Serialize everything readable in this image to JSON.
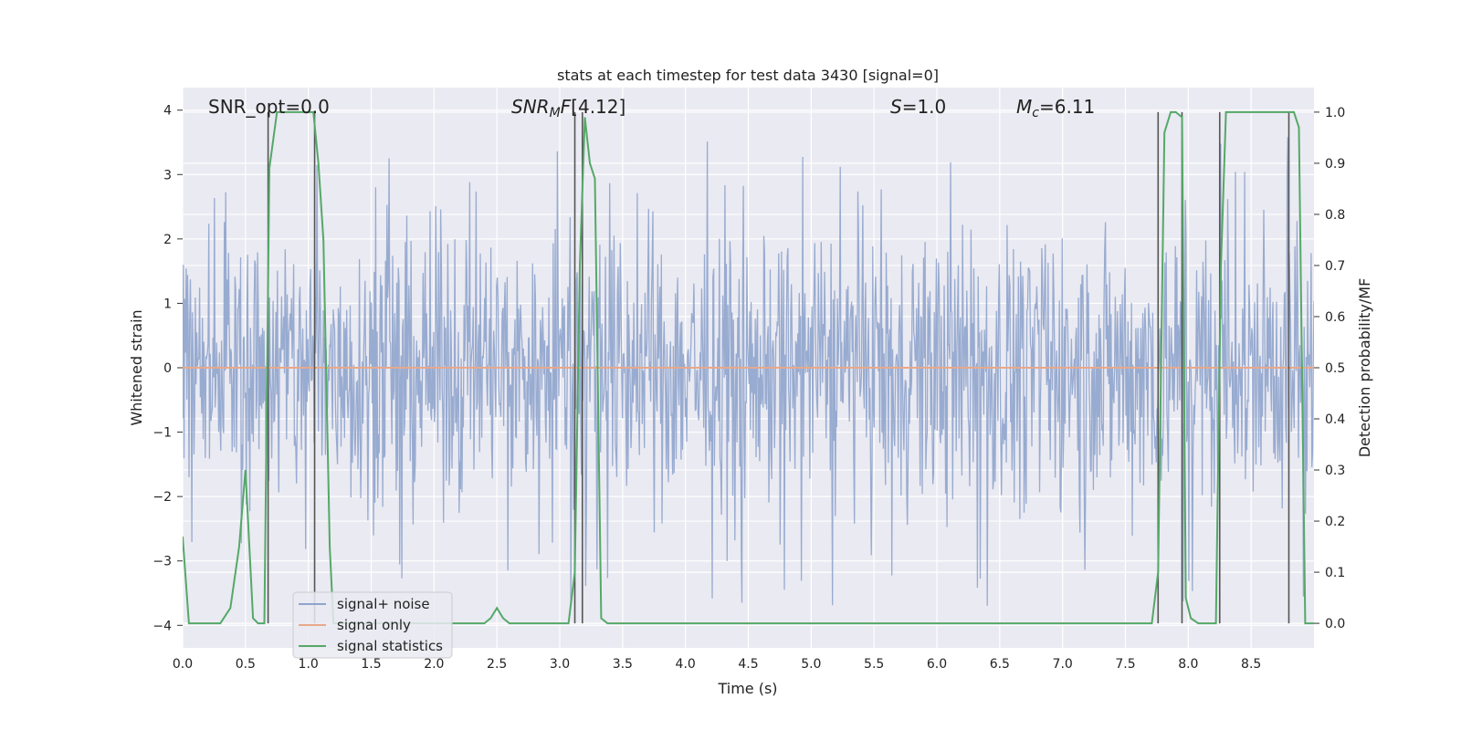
{
  "chart_data": {
    "type": "line",
    "title": "stats at each timestep for test data 3430 [signal=0]",
    "xlabel": "Time (s)",
    "ylabel": "Whitened strain",
    "y2label": "Detection probability/MF",
    "xlim": [
      0,
      9
    ],
    "ylim": [
      -4.35,
      4.35
    ],
    "y2lim": [
      -0.048,
      1.048
    ],
    "xticks": [
      "0.0",
      "0.5",
      "1.0",
      "1.5",
      "2.0",
      "2.5",
      "3.0",
      "3.5",
      "4.0",
      "4.5",
      "5.0",
      "5.5",
      "6.0",
      "6.5",
      "7.0",
      "7.5",
      "8.0",
      "8.5"
    ],
    "yticks": [
      "4",
      "3",
      "2",
      "1",
      "0",
      "−1",
      "−2",
      "−3",
      "−4"
    ],
    "y2ticks": [
      "1.0",
      "0.9",
      "0.8",
      "0.7",
      "0.6",
      "0.5",
      "0.4",
      "0.3",
      "0.2",
      "0.1",
      "0.0"
    ],
    "grid": true,
    "legend_placement": "lower-left",
    "annotations": {
      "snr_opt": "SNR_opt=0.0",
      "snr_mf": "[4.12]",
      "s_stat": "=1.0",
      "mc": "=6.11"
    },
    "series": [
      {
        "name": "signal+ noise",
        "color": "#8fa4cc",
        "kind": "noise",
        "sample_rate_hz": 1024,
        "typical_range": [
          -2.9,
          2.9
        ],
        "peak_max": 3.95,
        "peak_min": -3.7
      },
      {
        "name": "signal only",
        "color": "#e8a88a",
        "values_constant": 0
      },
      {
        "name": "signal statistics",
        "color": "#55a868",
        "axis": "right",
        "x": [
          0.0,
          0.05,
          0.1,
          0.2,
          0.3,
          0.38,
          0.45,
          0.5,
          0.56,
          0.6,
          0.65,
          0.69,
          0.75,
          0.8,
          0.9,
          1.0,
          1.04,
          1.08,
          1.12,
          1.17,
          1.2,
          1.3,
          2.0,
          2.4,
          2.45,
          2.5,
          2.55,
          2.6,
          3.0,
          3.07,
          3.12,
          3.16,
          3.2,
          3.24,
          3.28,
          3.33,
          3.38,
          3.5,
          7.65,
          7.71,
          7.76,
          7.81,
          7.86,
          7.9,
          7.95,
          7.98,
          8.02,
          8.08,
          8.18,
          8.22,
          8.26,
          8.3,
          8.4,
          8.78,
          8.84,
          8.88,
          8.93,
          9.0
        ],
        "values": [
          0.17,
          0.0,
          0.0,
          0.0,
          0.0,
          0.03,
          0.15,
          0.3,
          0.01,
          0.0,
          0.0,
          0.89,
          1.0,
          1.0,
          1.0,
          1.0,
          1.0,
          0.9,
          0.75,
          0.15,
          0.0,
          0.0,
          0.0,
          0.0,
          0.01,
          0.03,
          0.01,
          0.0,
          0.0,
          0.0,
          0.1,
          0.7,
          0.99,
          0.9,
          0.87,
          0.01,
          0.0,
          0.0,
          0.0,
          0.0,
          0.1,
          0.96,
          1.0,
          1.0,
          0.99,
          0.05,
          0.01,
          0.0,
          0.0,
          0.0,
          0.7,
          1.0,
          1.0,
          1.0,
          1.0,
          0.97,
          0.0,
          0.0
        ]
      }
    ],
    "vertical_markers": [
      0.68,
      1.05,
      3.12,
      3.18,
      7.76,
      7.95,
      8.25,
      8.8
    ]
  }
}
